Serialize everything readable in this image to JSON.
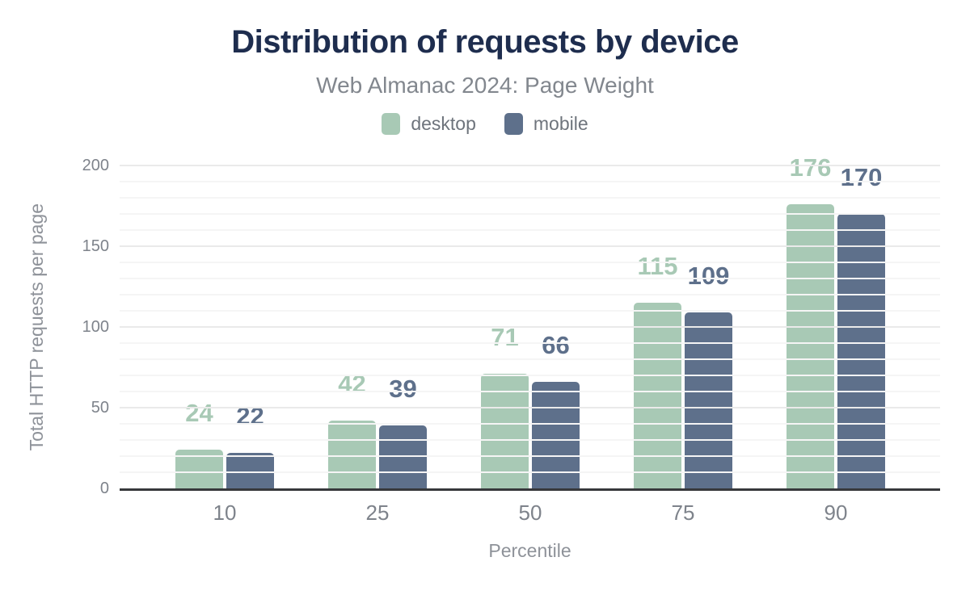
{
  "header": {
    "title": "Distribution of requests by device",
    "subtitle": "Web Almanac 2024: Page Weight"
  },
  "legend": [
    {
      "label": "desktop",
      "color": "#a8c9b5"
    },
    {
      "label": "mobile",
      "color": "#5e708b"
    }
  ],
  "chart_data": {
    "type": "bar",
    "title": "Distribution of requests by device",
    "subtitle": "Web Almanac 2024: Page Weight",
    "categories": [
      "10",
      "25",
      "50",
      "75",
      "90"
    ],
    "series": [
      {
        "name": "desktop",
        "color": "#a8c9b5",
        "values": [
          24,
          42,
          71,
          115,
          176
        ]
      },
      {
        "name": "mobile",
        "color": "#5e708b",
        "values": [
          22,
          39,
          66,
          109,
          170
        ]
      }
    ],
    "xlabel": "Percentile",
    "ylabel": "Total HTTP requests per page",
    "ylim": [
      0,
      200
    ],
    "yticks": [
      0,
      50,
      100,
      150,
      200
    ],
    "grid": "horizontal",
    "grid_minor_step": 10,
    "grid_major_step": 50,
    "legend_position": "top",
    "data_labels": "above bars, colored per series"
  },
  "colors": {
    "background": "#ffffff",
    "title": "#1e2d4e",
    "subtitle": "#82878e",
    "legend_text": "#6e747c",
    "tick_text": "#7e838b",
    "axis_title_text": "#8e9299",
    "axis_line": "#37383b",
    "grid_minor": "#f5f5f5",
    "grid_major": "#eaeaea",
    "desktop": "#a8c9b5",
    "mobile": "#5e708b"
  }
}
